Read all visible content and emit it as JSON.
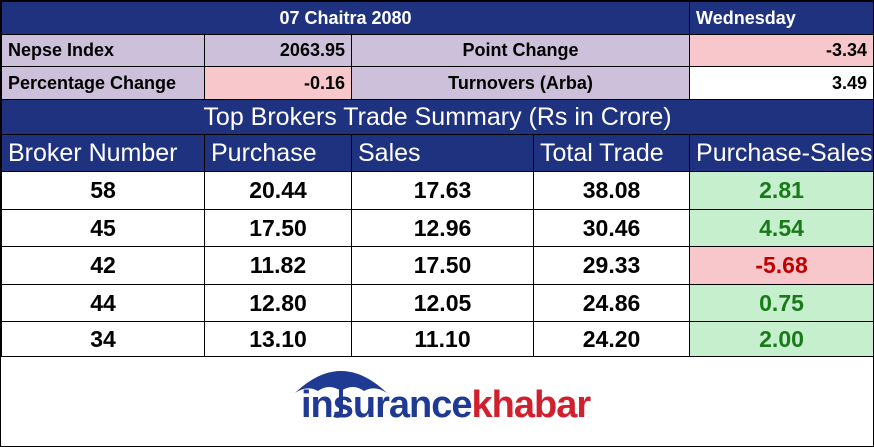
{
  "header": {
    "date": "07 Chaitra 2080",
    "day": "Wednesday"
  },
  "summary": {
    "nepse_label": "Nepse Index",
    "nepse_value": "2063.95",
    "point_change_label": "Point Change",
    "point_change_value": "-3.34",
    "percentage_change_label": "Percentage Change",
    "percentage_change_value": "-0.16",
    "turnover_label": "Turnovers (Arba)",
    "turnover_value": "3.49"
  },
  "table": {
    "title": "Top Brokers Trade Summary (Rs in Crore)",
    "columns": [
      "Broker Number",
      "Purchase",
      "Sales",
      "Total Trade",
      "Purchase-Sales"
    ],
    "rows": [
      [
        "58",
        "20.44",
        "17.63",
        "38.08",
        "2.81"
      ],
      [
        "45",
        "17.50",
        "12.96",
        "30.46",
        "4.54"
      ],
      [
        "42",
        "11.82",
        "17.50",
        "29.33",
        "-5.68"
      ],
      [
        "44",
        "12.80",
        "12.05",
        "24.86",
        "0.75"
      ],
      [
        "34",
        "13.10",
        "11.10",
        "24.20",
        "2.00"
      ]
    ]
  },
  "logo": {
    "part1": "insurance",
    "part2": "khabar"
  }
}
